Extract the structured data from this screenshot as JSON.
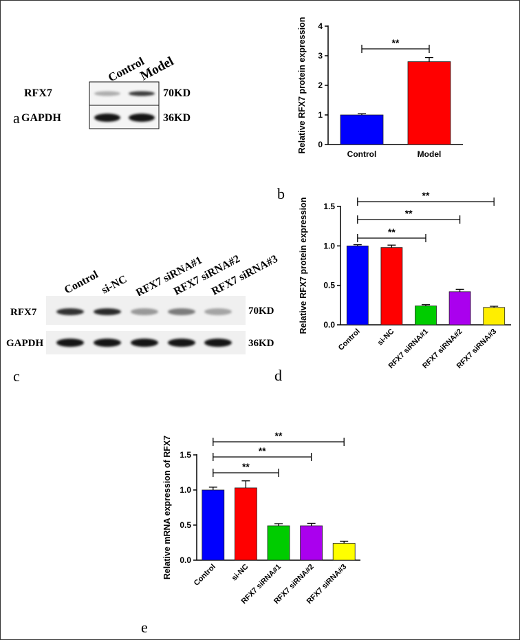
{
  "panel_letters": {
    "a": "a",
    "b": "b",
    "c": "c",
    "d": "d",
    "e": "e"
  },
  "blot_a": {
    "lanes": [
      "Control",
      "Model"
    ],
    "rows": [
      {
        "name": "RFX7",
        "size": "70KD",
        "intensity": [
          0.25,
          0.8
        ]
      },
      {
        "name": "GAPDH",
        "size": "36KD",
        "intensity": [
          1.0,
          1.0
        ]
      }
    ]
  },
  "blot_c": {
    "lanes": [
      "Control",
      "si-NC",
      "RFX7 siRNA#1",
      "RFX7 siRNA#2",
      "RFX7 siRNA#3"
    ],
    "rows": [
      {
        "name": "RFX7",
        "size": "70KD",
        "intensity": [
          0.85,
          0.9,
          0.35,
          0.5,
          0.3
        ]
      },
      {
        "name": "GAPDH",
        "size": "36KD",
        "intensity": [
          1.0,
          1.0,
          1.0,
          1.0,
          1.0
        ]
      }
    ]
  },
  "chart_data": [
    {
      "id": "b",
      "type": "bar",
      "ylabel": "Relative RFX7 protein expression",
      "categories": [
        "Control",
        "Model"
      ],
      "values": [
        1.0,
        2.8
      ],
      "errors": [
        0.04,
        0.14
      ],
      "colors": [
        "#0000ff",
        "#ff0000"
      ],
      "ylim": [
        0,
        4
      ],
      "yticks": [
        "0",
        "1",
        "2",
        "3",
        "4"
      ],
      "ytick_values": [
        0,
        1,
        2,
        3,
        4
      ],
      "significance": [
        {
          "from": 0,
          "to": 1,
          "label": "**"
        }
      ]
    },
    {
      "id": "d",
      "type": "bar",
      "ylabel": "Relative RFX7 protein expression",
      "categories": [
        "Control",
        "si-NC",
        "RFX7 siRNA#1",
        "RFX7 siRNA#2",
        "RFX7 siRNA#3"
      ],
      "values": [
        1.0,
        0.98,
        0.24,
        0.42,
        0.22
      ],
      "errors": [
        0.015,
        0.03,
        0.015,
        0.03,
        0.015
      ],
      "colors": [
        "#0000ff",
        "#ff0000",
        "#00cc00",
        "#aa00ee",
        "#ffee00"
      ],
      "ylim": [
        0,
        1.5
      ],
      "yticks": [
        "0.0",
        "0.5",
        "1.0",
        "1.5"
      ],
      "ytick_values": [
        0,
        0.5,
        1.0,
        1.5
      ],
      "significance": [
        {
          "from": 0,
          "to": 2,
          "label": "**"
        },
        {
          "from": 0,
          "to": 3,
          "label": "**"
        },
        {
          "from": 0,
          "to": 4,
          "label": "**"
        }
      ]
    },
    {
      "id": "e",
      "type": "bar",
      "ylabel": "Relative mRNA  expression of RFX7",
      "categories": [
        "Control",
        "si-NC",
        "RFX7 siRNA#1",
        "RFX7 siRNA#2",
        "RFX7 siRNA#3"
      ],
      "values": [
        1.0,
        1.03,
        0.49,
        0.49,
        0.24
      ],
      "errors": [
        0.04,
        0.1,
        0.03,
        0.035,
        0.03
      ],
      "colors": [
        "#0000ff",
        "#ff0000",
        "#00cc00",
        "#aa00ee",
        "#ffff00"
      ],
      "ylim": [
        0,
        1.5
      ],
      "yticks": [
        "0.0",
        "0.5",
        "1.0",
        "1.5"
      ],
      "ytick_values": [
        0,
        0.5,
        1.0,
        1.5
      ],
      "significance": [
        {
          "from": 0,
          "to": 2,
          "label": "**"
        },
        {
          "from": 0,
          "to": 3,
          "label": "**"
        },
        {
          "from": 0,
          "to": 4,
          "label": "**"
        }
      ]
    }
  ]
}
